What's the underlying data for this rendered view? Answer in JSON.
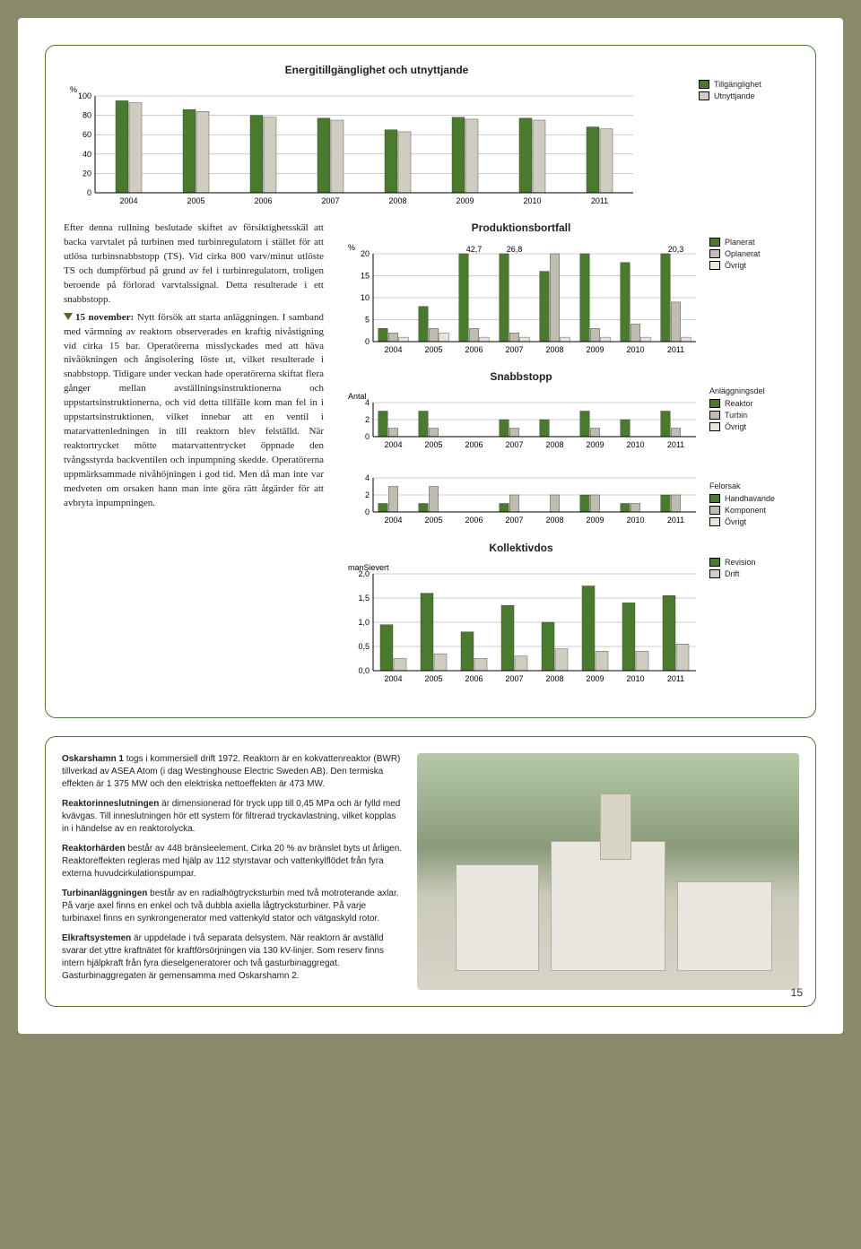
{
  "chart1": {
    "title": "Energitillgänglighet och utnyttjande",
    "ylabel": "%",
    "ymax": 100,
    "yticks": [
      0,
      20,
      40,
      60,
      80,
      100
    ],
    "years": [
      "2004",
      "2005",
      "2006",
      "2007",
      "2008",
      "2009",
      "2010",
      "2011"
    ],
    "series": [
      {
        "name": "Tillgänglighet",
        "color": "#4a7a2e",
        "values": [
          95,
          86,
          80,
          77,
          65,
          78,
          77,
          68
        ]
      },
      {
        "name": "Utnyttjande",
        "color": "#d0cdc0",
        "values": [
          93,
          84,
          78,
          75,
          63,
          76,
          75,
          66
        ]
      }
    ]
  },
  "chart2": {
    "title": "Produktionsbortfall",
    "ylabel": "%",
    "ymax": 20,
    "yticks": [
      0,
      5,
      10,
      15,
      20
    ],
    "years": [
      "2004",
      "2005",
      "2006",
      "2007",
      "2008",
      "2009",
      "2010",
      "2011"
    ],
    "annot": {
      "2006": "42,7",
      "2007": "26,8",
      "2011": "20,3"
    },
    "series": [
      {
        "name": "Planerat",
        "color": "#4a7a2e",
        "values": [
          3,
          8,
          20,
          20,
          16,
          20,
          18,
          20
        ]
      },
      {
        "name": "Oplanerat",
        "color": "#c0bdb0",
        "values": [
          2,
          3,
          3,
          2,
          20,
          3,
          4,
          9
        ]
      },
      {
        "name": "Övrigt",
        "color": "#e8e6da",
        "values": [
          1,
          2,
          1,
          1,
          1,
          1,
          1,
          1
        ]
      }
    ],
    "legend": [
      {
        "label": "Planerat",
        "color": "#4a7a2e"
      },
      {
        "label": "Oplanerat",
        "color": "#c0bdb0"
      },
      {
        "label": "Övrigt",
        "color": "#e8e6da"
      }
    ]
  },
  "chart3a": {
    "title": "Snabbstopp",
    "ylabel": "Antal",
    "ymax": 4,
    "yticks": [
      0,
      2,
      4
    ],
    "years": [
      "2004",
      "2005",
      "2006",
      "2007",
      "2008",
      "2009",
      "2010",
      "2011"
    ],
    "series": [
      {
        "name": "Reaktor",
        "color": "#4a7a2e",
        "values": [
          3,
          3,
          0,
          2,
          2,
          3,
          2,
          3
        ]
      },
      {
        "name": "Turbin",
        "color": "#c0bdb0",
        "values": [
          1,
          1,
          0,
          1,
          0,
          1,
          0,
          1
        ]
      },
      {
        "name": "Övrigt",
        "color": "#e8e6da",
        "values": [
          0,
          0,
          0,
          0,
          0,
          0,
          0,
          0
        ]
      }
    ],
    "legend_title": "Anläggningsdel",
    "legend": [
      {
        "label": "Reaktor",
        "color": "#4a7a2e"
      },
      {
        "label": "Turbin",
        "color": "#c0bdb0"
      },
      {
        "label": "Övrigt",
        "color": "#e8e6da"
      }
    ]
  },
  "chart3b": {
    "ymax": 4,
    "yticks": [
      0,
      2,
      4
    ],
    "years": [
      "2004",
      "2005",
      "2006",
      "2007",
      "2008",
      "2009",
      "2010",
      "2011"
    ],
    "series": [
      {
        "name": "Handhavande",
        "color": "#4a7a2e",
        "values": [
          1,
          1,
          0,
          1,
          0,
          2,
          1,
          2
        ]
      },
      {
        "name": "Komponent",
        "color": "#c0bdb0",
        "values": [
          3,
          3,
          0,
          2,
          2,
          2,
          1,
          2
        ]
      },
      {
        "name": "Övrigt",
        "color": "#e8e6da",
        "values": [
          0,
          0,
          0,
          0,
          0,
          0,
          0,
          0
        ]
      }
    ],
    "legend_title": "Felorsak",
    "legend": [
      {
        "label": "Handhavande",
        "color": "#4a7a2e"
      },
      {
        "label": "Komponent",
        "color": "#c0bdb0"
      },
      {
        "label": "Övrigt",
        "color": "#e8e6da"
      }
    ]
  },
  "chart4": {
    "title": "Kollektivdos",
    "ylabel": "manSievert",
    "ymax": 2.0,
    "yticks": [
      "0,0",
      "0,5",
      "1,0",
      "1,5",
      "2,0"
    ],
    "ytick_vals": [
      0,
      0.5,
      1.0,
      1.5,
      2.0
    ],
    "years": [
      "2004",
      "2005",
      "2006",
      "2007",
      "2008",
      "2009",
      "2010",
      "2011"
    ],
    "series": [
      {
        "name": "Revision",
        "color": "#4a7a2e",
        "values": [
          0.95,
          1.6,
          0.8,
          1.35,
          1.0,
          1.75,
          1.4,
          1.55
        ]
      },
      {
        "name": "Drift",
        "color": "#d0cdc0",
        "values": [
          0.25,
          0.35,
          0.25,
          0.3,
          0.45,
          0.4,
          0.4,
          0.55
        ]
      }
    ],
    "legend": [
      {
        "label": "Revision",
        "color": "#4a7a2e"
      },
      {
        "label": "Drift",
        "color": "#d0cdc0"
      }
    ]
  },
  "text": {
    "p1": "Efter denna rullning beslutade skiftet av försiktighetsskäl att backa varvtalet på turbinen med turbinregulatorn i stället för att utlösa turbinsnabbstopp (TS). Vid cirka 800 varv/minut utlöste TS och dumpförbud på grund av fel i turbinregulatorn, troligen beroende på förlorad varvtalssignal. Detta resulterade i ett snabbstopp.",
    "p2_lead": "15 november:",
    "p2": " Nytt försök att starta anläggningen. I samband med värmning av reaktorn observerades en kraftig nivåstigning vid cirka 15 bar. Operatörerna misslyckades med att häva nivåökningen och ångisolering löste ut, vilket resulterade i snabbstopp. Tidigare under veckan hade operatörerna skiftat flera gånger mellan avställningsinstruktionerna och uppstartsinstruktionerna, och vid detta tillfälle kom man fel in i uppstartsinstruktionen, vilket innebar att en ventil i matarvattenledningen in till reaktorn blev felställd. När reaktortrycket mötte matarvattentrycket öppnade den tvångsstyrda backventilen och inpumpning skedde. Operatörerna uppmärksammade nivåhöjningen i god tid. Men då man inte var medveten om orsaken hann man inte göra rätt åtgärder för att avbryta inpumpningen."
  },
  "info": {
    "p1_strong": "Oskarshamn 1",
    "p1": " togs i kommersiell drift 1972. Reaktorn är en kokvattenreaktor (BWR) tillverkad av ASEA Atom (i dag Westinghouse Electric Sweden AB). Den termiska effekten är 1 375 MW och den elektriska nettoeffekten är 473 MW.",
    "p2_strong": "Reaktorinneslutningen",
    "p2": " är dimensionerad för tryck upp till 0,45 MPa och är fylld med kvävgas. Till inneslutningen hör ett system för filtrerad tryckavlastning, vilket kopplas in i händelse av en reaktorolycka.",
    "p3_strong": "Reaktorhärden",
    "p3": " består av 448 bränsleelement. Cirka 20 % av bränslet byts ut årligen. Reaktoreffekten regleras med hjälp av 112 styrstavar och vattenkylflödet från fyra externa huvudcirkulationspumpar.",
    "p4_strong": "Turbinanläggningen",
    "p4": " består av en radialhögtrycksturbin med två motroterande axlar. På varje axel finns en enkel och två dubbla axiella lågtrycksturbiner. På varje turbinaxel finns en synkrongenerator med vattenkyld stator och vätgaskyld rotor.",
    "p5_strong": "Elkraftsystemen",
    "p5": " är uppdelade i två separata delsystem. När reaktorn är avställd svarar det yttre kraftnätet för kraftförsörjningen via 130 kV-linjer. Som reserv finns intern hjälpkraft från fyra dieselgeneratorer och två gasturbinaggregat. Gasturbinaggregaten är gemensamma med Oskarshamn 2."
  },
  "page_number": "15",
  "style": {
    "green": "#4a7a2e",
    "grey": "#d0cdc0",
    "light": "#e8e6da",
    "axis": "#000",
    "grid": "#888"
  }
}
